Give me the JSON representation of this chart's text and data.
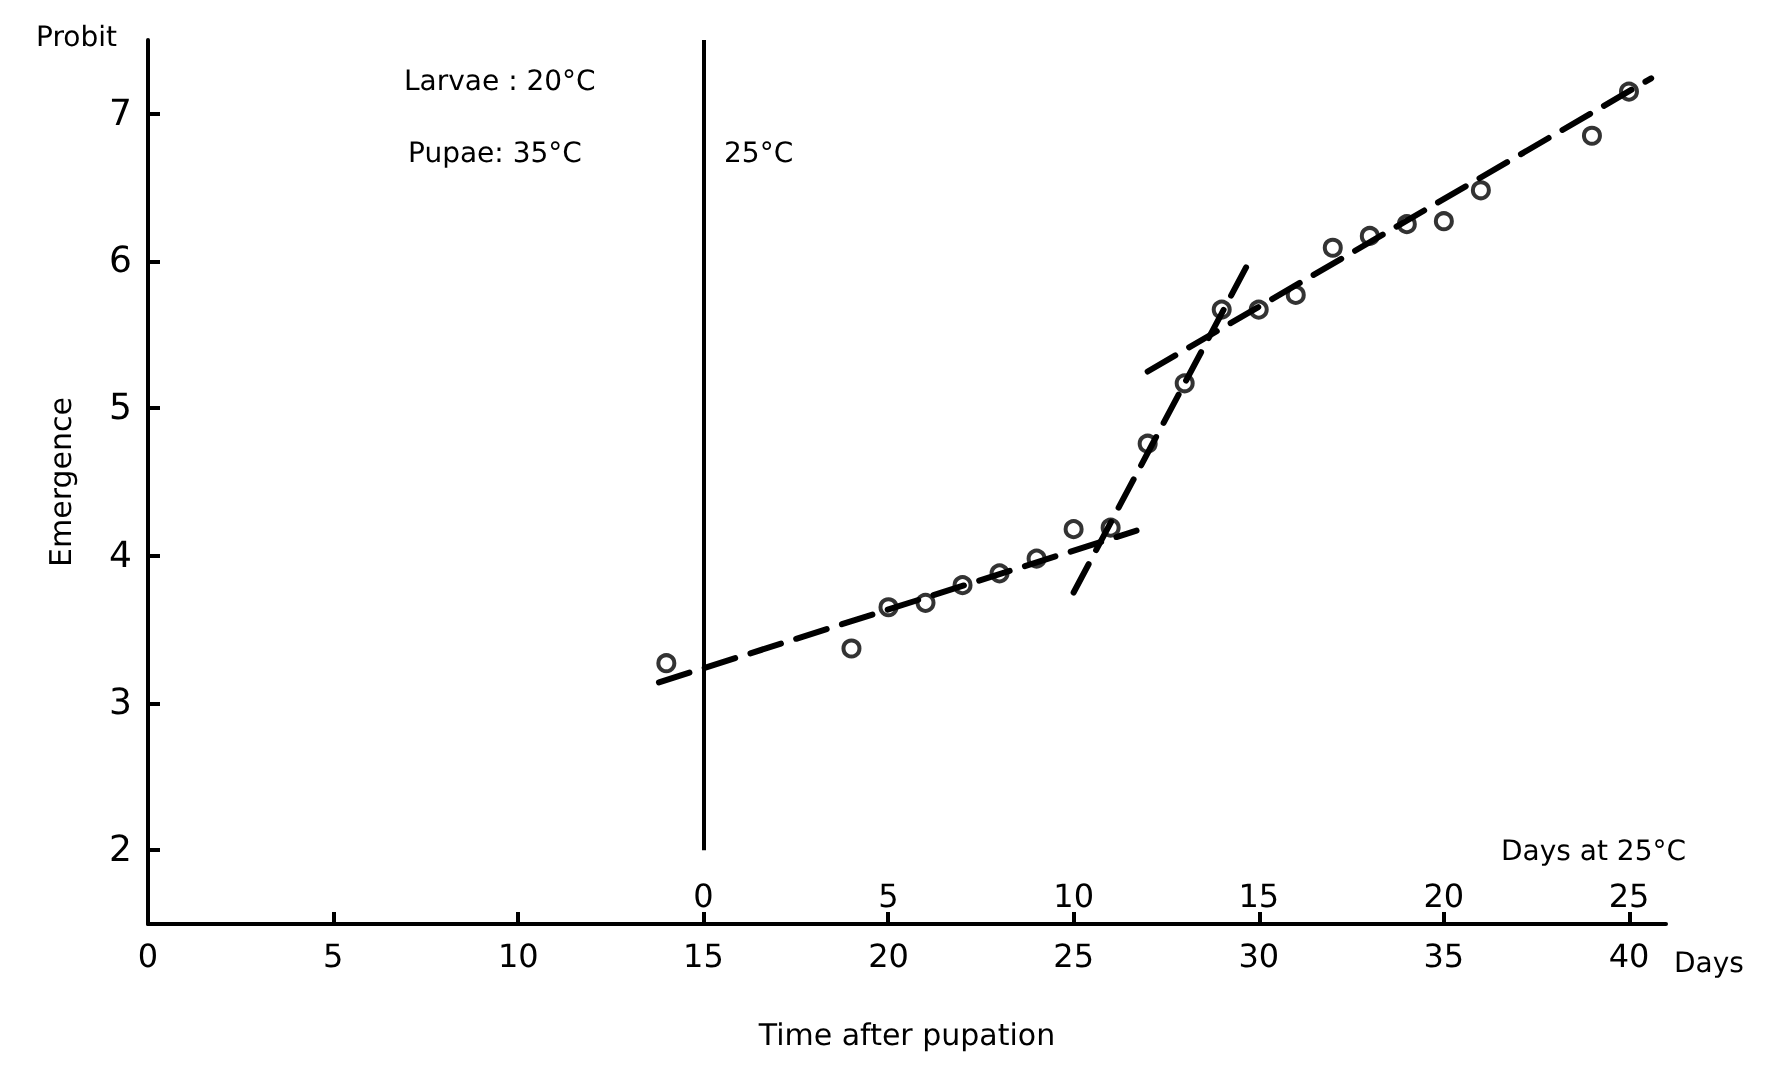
{
  "chart_data": {
    "type": "scatter",
    "xlabel": "Time after pupation",
    "ylabel": "Emergence",
    "x2label": "Days at 25°C",
    "xlim": [
      0,
      41
    ],
    "xticks": [
      0,
      5,
      10,
      15,
      20,
      25,
      30,
      35,
      40
    ],
    "x2lim": [
      -15,
      26
    ],
    "x2ticks": [
      0,
      5,
      10,
      15,
      20,
      25
    ],
    "ylim": [
      1.5,
      7.5
    ],
    "yticks": [
      2,
      3,
      4,
      5,
      6,
      7
    ],
    "grid": false,
    "series": [
      {
        "color": "#000000",
        "marker": "circle",
        "x": [
          14,
          19,
          20,
          21,
          22,
          23,
          24,
          25,
          26,
          27,
          28,
          29,
          30,
          31,
          32,
          33,
          34,
          35,
          36,
          39,
          40
        ],
        "values": [
          3.27,
          3.37,
          3.65,
          3.68,
          3.8,
          3.88,
          3.98,
          4.18,
          4.19,
          4.76,
          5.17,
          5.67,
          5.67,
          5.77,
          6.09,
          6.17,
          6.25,
          6.27,
          6.48,
          6.85,
          7.15
        ]
      },
      {
        "type": "line",
        "color": "#000000",
        "marker": "none",
        "line_style": "dashed",
        "x": [
          13.8,
          26.7
        ],
        "values": [
          3.14,
          4.17
        ]
      },
      {
        "type": "line",
        "color": "#000000",
        "marker": "none",
        "line_style": "dashed",
        "x": [
          25,
          29.75
        ],
        "values": [
          3.75,
          6.0
        ]
      },
      {
        "type": "line",
        "color": "#000000",
        "marker": "none",
        "line_style": "dashed",
        "x": [
          27,
          40.6
        ],
        "values": [
          5.25,
          7.24
        ]
      }
    ],
    "ref_lines": [
      {
        "axis": "x",
        "value": 15,
        "label": null,
        "color": "#000000",
        "line_style": "solid"
      }
    ],
    "annotations": [
      "Probit",
      "Larvae : 20°C",
      "Pupae: 35°C",
      "25°C",
      "Days"
    ]
  }
}
